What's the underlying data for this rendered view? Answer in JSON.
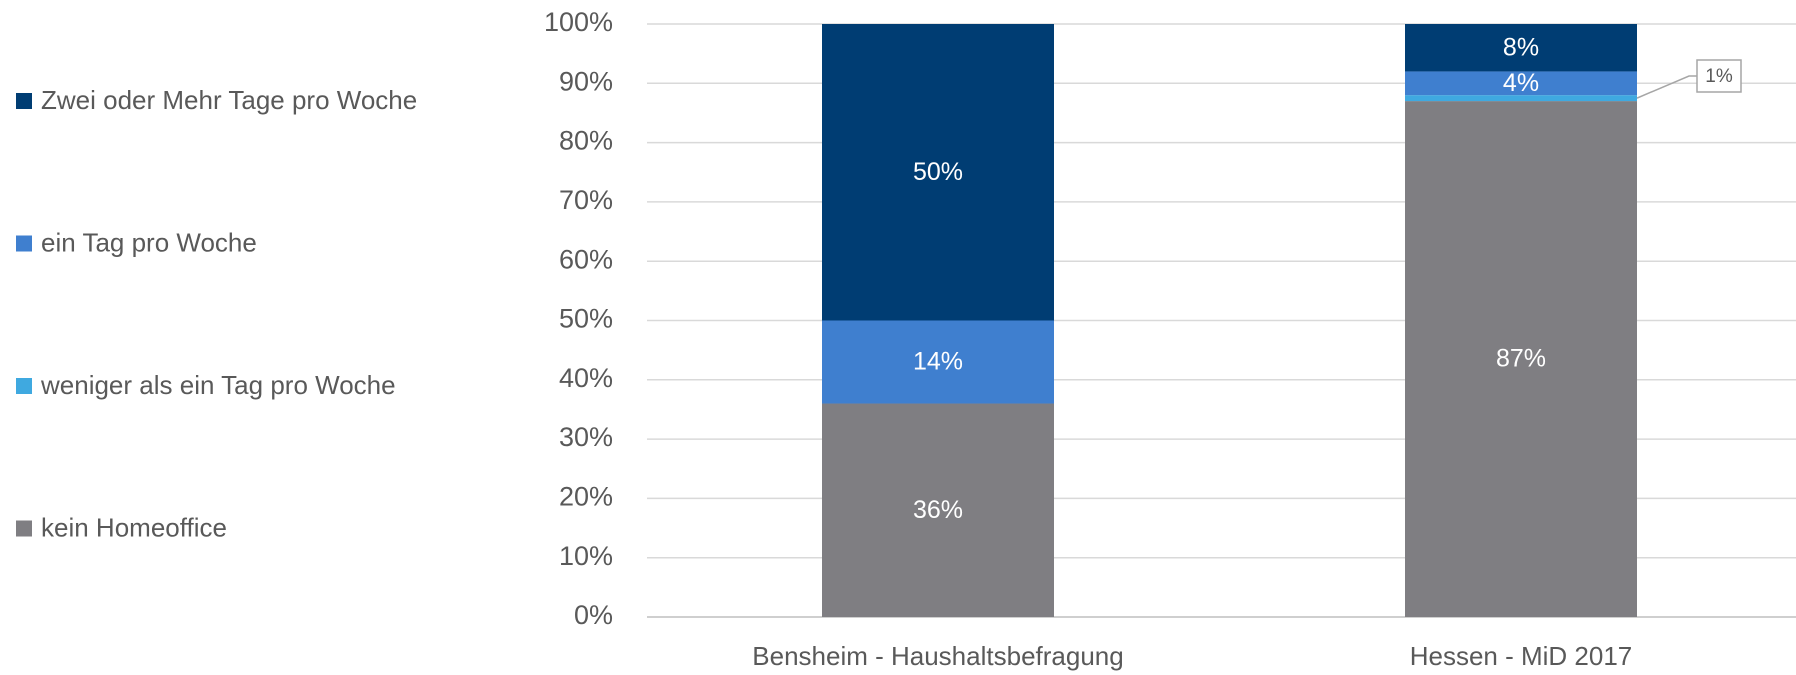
{
  "chart_data": {
    "type": "stacked_bar",
    "categories": [
      "Bensheim - Haushaltsbefragung",
      "Hessen - MiD 2017"
    ],
    "series": [
      {
        "name": "kein Homeoffice",
        "color": "#7f7e82",
        "values": [
          36,
          87
        ],
        "value_labels": [
          "36%",
          "87%"
        ]
      },
      {
        "name": "weniger als ein Tag pro Woche",
        "color": "#3fa9e0",
        "values": [
          0,
          1
        ],
        "value_labels": [
          null,
          "1%"
        ]
      },
      {
        "name": "ein Tag pro Woche",
        "color": "#3f7fcf",
        "values": [
          14,
          4
        ],
        "value_labels": [
          "14%",
          "4%"
        ]
      },
      {
        "name": "Zwei oder Mehr Tage pro Woche",
        "color": "#003d73",
        "values": [
          50,
          8
        ],
        "value_labels": [
          "50%",
          "8%"
        ]
      }
    ],
    "ylim": [
      0,
      100
    ],
    "yticks": [
      {
        "value": 0,
        "label": "0%"
      },
      {
        "value": 10,
        "label": "10%"
      },
      {
        "value": 20,
        "label": "20%"
      },
      {
        "value": 30,
        "label": "30%"
      },
      {
        "value": 40,
        "label": "40%"
      },
      {
        "value": 50,
        "label": "50%"
      },
      {
        "value": 60,
        "label": "60%"
      },
      {
        "value": 70,
        "label": "70%"
      },
      {
        "value": 80,
        "label": "80%"
      },
      {
        "value": 90,
        "label": "90%"
      },
      {
        "value": 100,
        "label": "100%"
      }
    ],
    "grid": true,
    "legend": "left"
  }
}
